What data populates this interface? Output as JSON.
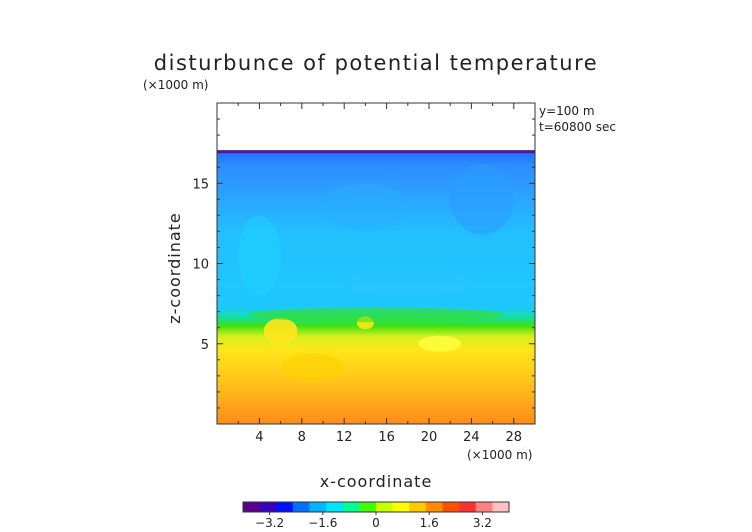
{
  "chart_data": {
    "type": "heatmap",
    "title": "disturbunce of potential temperature",
    "units_label": "(×1000 m)",
    "annotations": [
      "y=100 m",
      "t=60800 sec"
    ],
    "xlabel": "x-coordinate",
    "x_units_label": "(×1000 m)",
    "ylabel": "z-coordinate",
    "xlim": [
      0,
      30
    ],
    "ylim": [
      0,
      20
    ],
    "x_ticks": [
      "4",
      "8",
      "12",
      "16",
      "20",
      "24",
      "28"
    ],
    "x_tick_values": [
      4,
      8,
      12,
      16,
      20,
      24,
      28
    ],
    "y_ticks": [
      "5",
      "10",
      "15"
    ],
    "y_tick_values": [
      5,
      10,
      15
    ],
    "domain_top_z": 17,
    "colorbar": {
      "min": -4,
      "max": 4,
      "ticks": [
        "−3.2",
        "−1.6",
        "0",
        "1.6",
        "3.2"
      ],
      "tick_values": [
        -3.2,
        -1.6,
        0,
        1.6,
        3.2
      ],
      "colors": [
        "#5a008c",
        "#3a00c0",
        "#0010ff",
        "#0070ff",
        "#00b4ff",
        "#00e4ff",
        "#00ff90",
        "#40ff00",
        "#c8ff00",
        "#ffff00",
        "#ffc800",
        "#ff8c00",
        "#ff5000",
        "#ff3030",
        "#ff8080",
        "#ffc0c0"
      ]
    },
    "colors": {
      "bottom": "#ff8c1a",
      "lower": "#ffe51a",
      "mid": "#40e010",
      "upper": "#1ec8ff",
      "top": "#2ca0ff",
      "top_edge": "#5a10a0"
    }
  }
}
